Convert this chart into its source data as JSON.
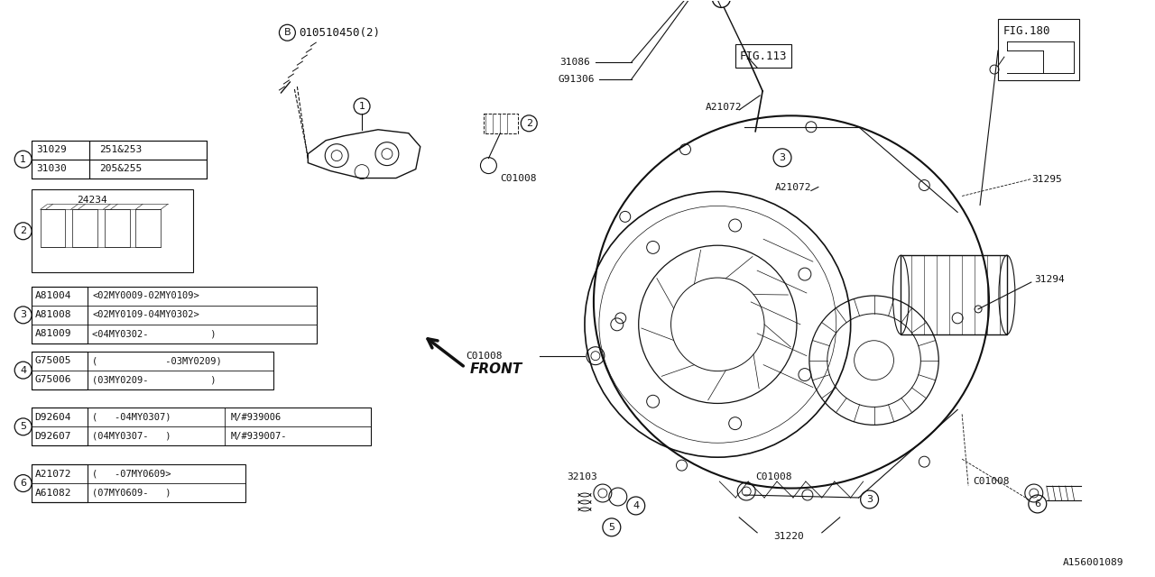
{
  "bg_color": "#ffffff",
  "lc": "#111111",
  "fig_w": 12.8,
  "fig_h": 6.4,
  "dpi": 100,
  "item1_rows": [
    [
      "31029",
      "251&253"
    ],
    [
      "31030",
      "205&255"
    ]
  ],
  "item2_part": "24234",
  "item3_parts": [
    "A81004",
    "A81008",
    "A81009"
  ],
  "item3_descs": [
    "<02MY0009-02MY0109>",
    "<02MY0109-04MY0302>",
    "<04MY0302-           )"
  ],
  "item4_parts": [
    "G75005",
    "G75006"
  ],
  "item4_descs": [
    "(            -03MY0209)",
    "(03MY0209-           )"
  ],
  "item5_parts": [
    "D92604",
    "D92607"
  ],
  "item5_descs": [
    "(   -04MY0307)",
    "(04MY0307-   )"
  ],
  "item5_descs2": [
    "M/#939006",
    "M/#939007-"
  ],
  "item6_parts": [
    "A21072",
    "A61082"
  ],
  "item6_descs": [
    "(   -07MY0609>",
    "(07MY0609-   )"
  ],
  "watermark": "A156001089",
  "bolt_label": "010510450(2)",
  "labels": {
    "31086": "31086",
    "G91306": "G91306",
    "FIG113": "FIG.113",
    "FIG180": "FIG.180",
    "A21072a": "A21072",
    "A21072b": "A21072",
    "31295": "31295",
    "31294": "31294",
    "31220": "31220",
    "32103": "32103",
    "C01008a": "C01008",
    "C01008b": "C01008",
    "C01008c": "C01008",
    "FRONT": "FRONT"
  }
}
